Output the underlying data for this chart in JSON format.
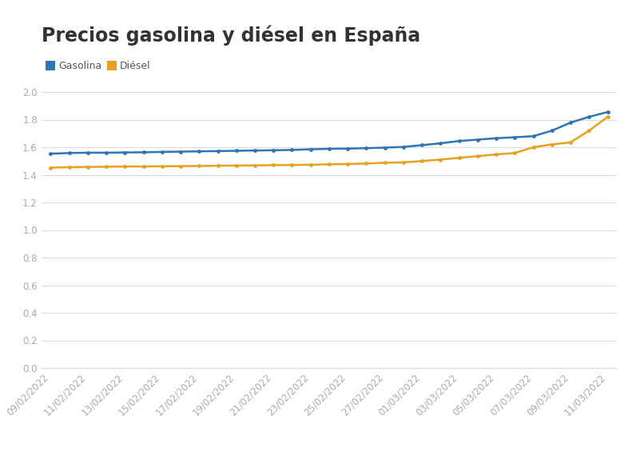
{
  "title": "Precios gasolina y diésel en España",
  "gasolina_color": "#2e75b6",
  "diesel_color": "#e8a020",
  "background_color": "#ffffff",
  "grid_color": "#d8dce0",
  "tick_color": "#aaaaaa",
  "ylim": [
    0,
    2.0
  ],
  "yticks": [
    0,
    0.2,
    0.4,
    0.6,
    0.8,
    1.0,
    1.2,
    1.4,
    1.6,
    1.8,
    2.0
  ],
  "dates": [
    "09/02/2022",
    "10/02/2022",
    "11/02/2022",
    "12/02/2022",
    "13/02/2022",
    "14/02/2022",
    "15/02/2022",
    "16/02/2022",
    "17/02/2022",
    "18/02/2022",
    "19/02/2022",
    "20/02/2022",
    "21/02/2022",
    "22/02/2022",
    "23/02/2022",
    "24/02/2022",
    "25/02/2022",
    "26/02/2022",
    "27/02/2022",
    "28/02/2022",
    "01/03/2022",
    "02/03/2022",
    "03/03/2022",
    "04/03/2022",
    "05/03/2022",
    "06/03/2022",
    "07/03/2022",
    "08/03/2022",
    "09/03/2022",
    "10/03/2022",
    "11/03/2022"
  ],
  "xtick_labels": [
    "09/02/2022",
    "",
    "11/02/2022",
    "",
    "13/02/2022",
    "",
    "15/02/2022",
    "",
    "17/02/2022",
    "",
    "19/02/2022",
    "",
    "21/02/2022",
    "",
    "23/02/2022",
    "",
    "25/02/2022",
    "",
    "27/02/2022",
    "",
    "01/03/2022",
    "",
    "03/03/2022",
    "",
    "05/03/2022",
    "",
    "07/03/2022",
    "",
    "09/03/2022",
    "",
    "11/03/2022"
  ],
  "gasolina": [
    1.553,
    1.558,
    1.56,
    1.56,
    1.562,
    1.563,
    1.566,
    1.568,
    1.57,
    1.572,
    1.574,
    1.576,
    1.578,
    1.58,
    1.585,
    1.588,
    1.59,
    1.593,
    1.597,
    1.602,
    1.615,
    1.628,
    1.645,
    1.655,
    1.665,
    1.672,
    1.68,
    1.72,
    1.778,
    1.82,
    1.855
  ],
  "diesel": [
    1.452,
    1.455,
    1.457,
    1.458,
    1.46,
    1.46,
    1.462,
    1.463,
    1.464,
    1.466,
    1.467,
    1.468,
    1.47,
    1.471,
    1.473,
    1.476,
    1.478,
    1.482,
    1.487,
    1.49,
    1.5,
    1.51,
    1.523,
    1.535,
    1.548,
    1.558,
    1.6,
    1.62,
    1.635,
    1.72,
    1.82
  ],
  "legend_labels": [
    "Gasolina",
    "Diésel"
  ],
  "title_fontsize": 17,
  "axis_fontsize": 8.5,
  "legend_fontsize": 9,
  "marker_size": 3.5,
  "line_width": 1.8
}
